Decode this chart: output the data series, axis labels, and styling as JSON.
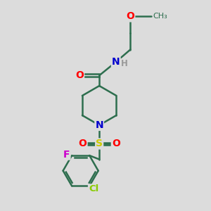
{
  "bg_color": "#e8e8e8",
  "bond_color": "#2d6e4e",
  "atom_colors": {
    "O": "#ff0000",
    "N": "#0000cd",
    "S": "#cccc00",
    "F": "#cc00cc",
    "Cl": "#88cc00",
    "H": "#999999",
    "C": "#2d6e4e"
  },
  "bond_width": 1.8,
  "fig_bg": "#dcdcdc"
}
